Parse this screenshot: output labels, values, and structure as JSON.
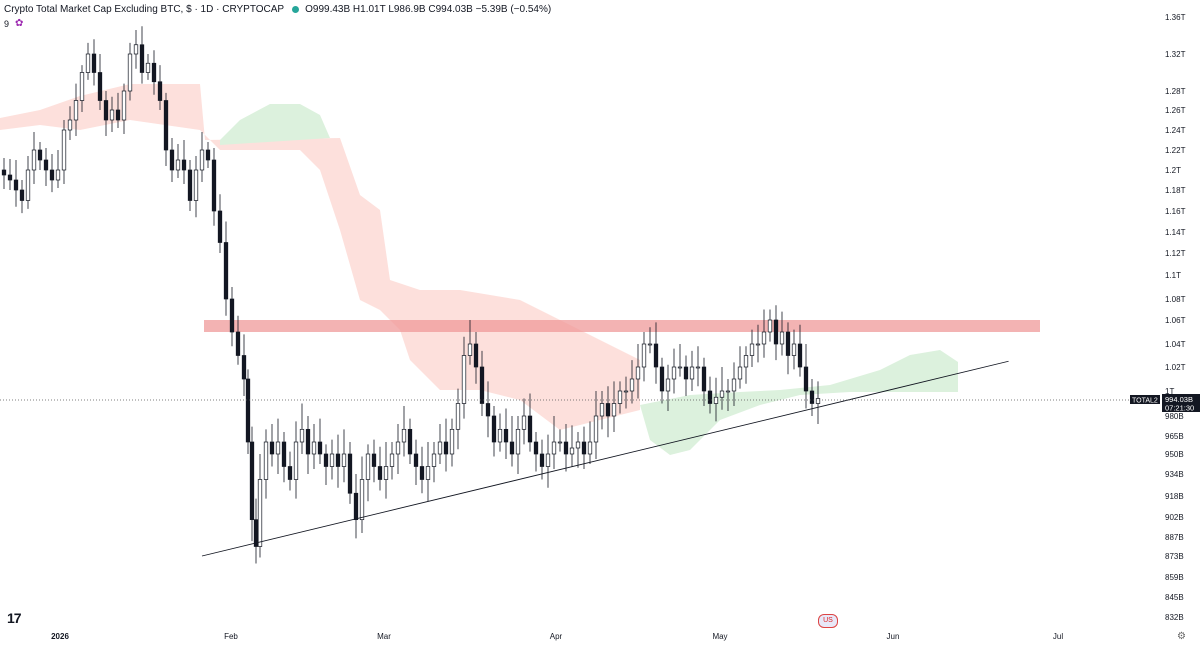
{
  "header": {
    "title": "Crypto Total Market Cap Excluding BTC, $ · 1D · CRYPTOCAP",
    "ohlc": "O999.43B H1.01T L986.9B C994.03B −5.39B (−0.54%)",
    "indicator_value": "9"
  },
  "chart_data": {
    "type": "candlestick",
    "y_axis_labels": [
      "1.36T",
      "1.32T",
      "1.28T",
      "1.26T",
      "1.24T",
      "1.22T",
      "1.2T",
      "1.18T",
      "1.16T",
      "1.14T",
      "1.12T",
      "1.1T",
      "1.08T",
      "1.06T",
      "1.04T",
      "1.02T",
      "1T",
      "980B",
      "965B",
      "950B",
      "934B",
      "918B",
      "902B",
      "887B",
      "873B",
      "859B",
      "845B",
      "832B"
    ],
    "x_axis_labels": [
      "2026",
      "Feb",
      "Mar",
      "Apr",
      "May",
      "Jun",
      "Jul"
    ],
    "price_label": {
      "symbol": "TOTAL2",
      "value": "994.03B",
      "countdown": "07:21:30"
    },
    "resistance_zone": {
      "low": 1.05,
      "high": 1.06
    },
    "support_trendline": {
      "start": {
        "date": "2026-01-26",
        "value": 0.873
      },
      "end": {
        "date": "2026-06-17",
        "value": 1.025
      }
    },
    "colors": {
      "up": "#ffffff",
      "down": "#131722",
      "zone": "#ef9a9a",
      "cloud_bear": "#fde0dc",
      "cloud_bull": "#dcf1dd"
    }
  }
}
